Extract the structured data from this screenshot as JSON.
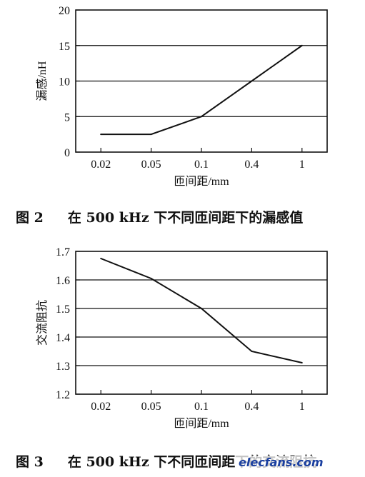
{
  "figures": [
    {
      "caption_num": "图 2",
      "caption_text": "在 500 kHz 下不同匝间距下的漏感值"
    },
    {
      "caption_num": "图 3",
      "caption_text": "在 500 kHz 下不同匝间距下的交流阻抗"
    }
  ],
  "watermark": "elecfans.com",
  "chart_data": [
    {
      "type": "line",
      "xlabel": "匝间距/mm",
      "ylabel": "漏感/nH",
      "categories": [
        "0.02",
        "0.05",
        "0.1",
        "0.4",
        "1"
      ],
      "values": [
        2.5,
        2.5,
        5,
        10,
        15
      ],
      "yticks": [
        "0",
        "5",
        "10",
        "15",
        "20"
      ],
      "ylim": [
        0,
        20
      ],
      "grid": "horizontal"
    },
    {
      "type": "line",
      "xlabel": "匝间距/mm",
      "ylabel": "交流阻抗",
      "categories": [
        "0.02",
        "0.05",
        "0.1",
        "0.4",
        "1"
      ],
      "values": [
        1.675,
        1.605,
        1.5,
        1.35,
        1.31
      ],
      "yticks": [
        "1.2",
        "1.3",
        "1.4",
        "1.5",
        "1.6",
        "1.7"
      ],
      "ylim": [
        1.2,
        1.7
      ],
      "grid": "horizontal"
    }
  ]
}
